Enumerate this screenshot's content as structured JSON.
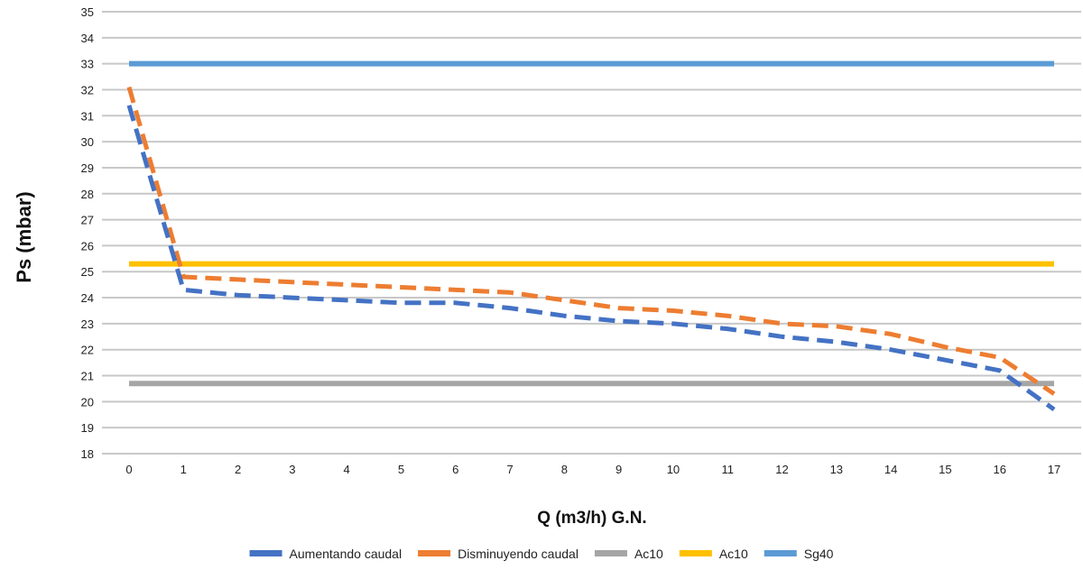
{
  "chart_data": {
    "type": "line",
    "xlabel": "Q (m3/h) G.N.",
    "ylabel": "Ps (mbar)",
    "xlim": [
      0,
      17
    ],
    "ylim": [
      18,
      35
    ],
    "x_ticks": [
      0,
      1,
      2,
      3,
      4,
      5,
      6,
      7,
      8,
      9,
      10,
      11,
      12,
      13,
      14,
      15,
      16,
      17
    ],
    "y_ticks": [
      18,
      19,
      20,
      21,
      22,
      23,
      24,
      25,
      26,
      27,
      28,
      29,
      30,
      31,
      32,
      33,
      34,
      35
    ],
    "grid": "horizontal",
    "legend_position": "bottom",
    "series": [
      {
        "name": "Aumentando caudal",
        "style": "dashed",
        "color": "#4472C4",
        "x": [
          0,
          1,
          2,
          3,
          4,
          5,
          6,
          7,
          8,
          9,
          10,
          11,
          12,
          13,
          14,
          15,
          16,
          17
        ],
        "y": [
          31.4,
          24.3,
          24.1,
          24.0,
          23.9,
          23.8,
          23.8,
          23.6,
          23.3,
          23.1,
          23.0,
          22.8,
          22.5,
          22.3,
          22.0,
          21.6,
          21.2,
          19.7
        ]
      },
      {
        "name": "Disminuyendo caudal",
        "style": "dashed",
        "color": "#ED7D31",
        "x": [
          0,
          1,
          2,
          3,
          4,
          5,
          6,
          7,
          8,
          9,
          10,
          11,
          12,
          13,
          14,
          15,
          16,
          17
        ],
        "y": [
          32.1,
          24.8,
          24.7,
          24.6,
          24.5,
          24.4,
          24.3,
          24.2,
          23.9,
          23.6,
          23.5,
          23.3,
          23.0,
          22.9,
          22.6,
          22.1,
          21.7,
          20.3
        ]
      },
      {
        "name": "Ac10",
        "style": "solid",
        "color": "#A5A5A5",
        "x": [
          0,
          17
        ],
        "y": [
          20.7,
          20.7
        ]
      },
      {
        "name": "Ac10",
        "style": "solid",
        "color": "#FFC000",
        "x": [
          0,
          17
        ],
        "y": [
          25.3,
          25.3
        ]
      },
      {
        "name": "Sg40",
        "style": "solid",
        "color": "#5B9BD5",
        "x": [
          0,
          17
        ],
        "y": [
          33.0,
          33.0
        ]
      }
    ]
  }
}
